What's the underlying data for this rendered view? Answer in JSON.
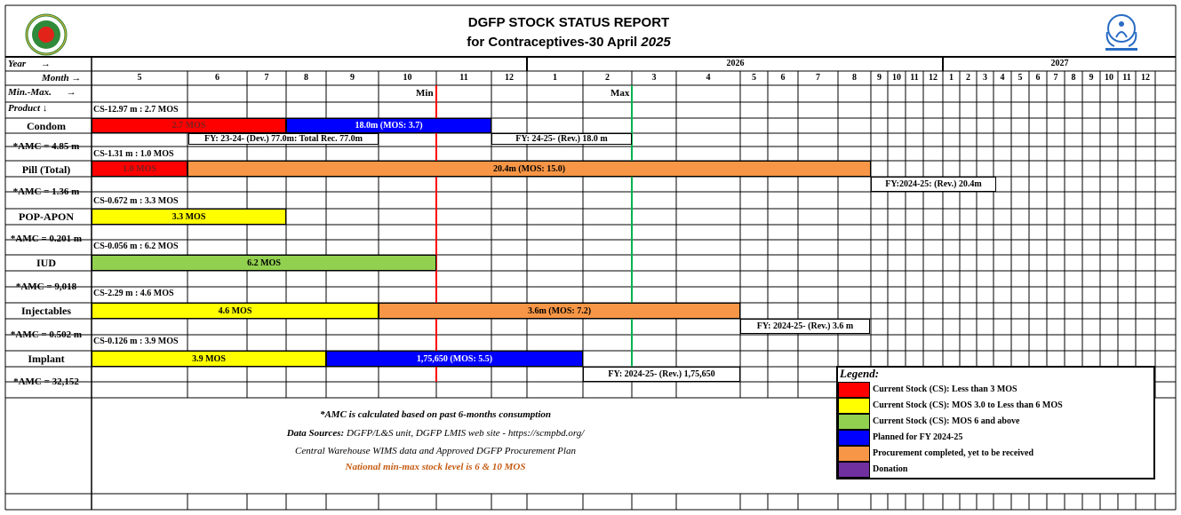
{
  "header": {
    "title_line1": "DGFP STOCK STATUS REPORT",
    "title_line2_prefix": "for Contraceptives-30 April ",
    "title_line2_year": "2025",
    "left_logo_icon": "bangladesh-govt-seal-icon",
    "right_logo_icon": "dgfp-family-planning-logo-icon"
  },
  "grid": {
    "row_labels": {
      "year": "Year",
      "year_arrow": "→",
      "month": "Month",
      "month_arrow": "→",
      "minmax": "Min.-Max.",
      "minmax_arrow": "→",
      "product": "Product",
      "product_arrow": "↓"
    },
    "years": [
      "2026",
      "2027"
    ],
    "months": [
      "5",
      "6",
      "7",
      "8",
      "9",
      "10",
      "11",
      "12",
      "1",
      "2",
      "3",
      "4",
      "5",
      "6",
      "7",
      "8",
      "9",
      "10",
      "11",
      "12",
      "1",
      "2",
      "3",
      "4",
      "5",
      "6",
      "7",
      "8",
      "9",
      "10",
      "11",
      "12"
    ],
    "min_label": "Min",
    "max_label": "Max"
  },
  "colors": {
    "red": "#ff0000",
    "yellow": "#ffff00",
    "green": "#92d050",
    "blue": "#0000ff",
    "orange": "#f79646",
    "purple": "#7030a0",
    "min_line": "#ff0000",
    "max_line": "#00b050",
    "note_orange": "#c55a11"
  },
  "products": [
    {
      "name": "Condom",
      "cs": "CS-12.97 m : 2.7 MOS",
      "amc": "*AMC = 4.85 m",
      "bars": [
        "2.7 MOS",
        "18.0m (MOS: 3.7)"
      ],
      "notes": [
        "FY: 23-24- (Dev.) 77.0m: Total Rec. 77.0m",
        "FY: 24-25- (Rev.) 18.0 m"
      ]
    },
    {
      "name": "Pill (Total)",
      "cs": "CS-1.31 m : 1.0 MOS",
      "amc": "*AMC = 1.36 m",
      "bars": [
        "1.0 MOS",
        "20.4m (MOS: 15.0)"
      ],
      "notes": [
        "FY:2024-25: (Rev.) 20.4m"
      ]
    },
    {
      "name": "POP-APON",
      "cs": "CS-0.672 m : 3.3 MOS",
      "amc": "*AMC = 0.201 m",
      "bars": [
        "3.3 MOS"
      ],
      "notes": []
    },
    {
      "name": "IUD",
      "cs": "CS-0.056 m : 6.2 MOS",
      "amc": "*AMC = 9,018",
      "bars": [
        "6.2 MOS"
      ],
      "notes": []
    },
    {
      "name": "Injectables",
      "cs": "CS-2.29 m : 4.6 MOS",
      "amc": "*AMC = 0.502 m",
      "bars": [
        "4.6 MOS",
        "3.6m (MOS: 7.2)"
      ],
      "notes": [
        "FY: 2024-25- (Rev.) 3.6 m"
      ]
    },
    {
      "name": "Implant",
      "cs": "CS-0.126 m : 3.9 MOS",
      "amc": "*AMC = 32,152",
      "bars": [
        "3.9 MOS",
        "1,75,650  (MOS: 5.5)"
      ],
      "notes": [
        "FY: 2024-25- (Rev.) 1,75,650"
      ]
    }
  ],
  "footnotes": {
    "amc_note": "*AMC is calculated based on past 6-months consumption",
    "sources_label": "Data Sources: ",
    "sources_text": "DGFP/L&S unit, DGFP LMIS web site -  https://scmpbd.org/",
    "sources_line2": "Central Warehouse WIMS data and Approved DGFP Procurement Plan",
    "minmax_note": "National min-max stock level is 6 & 10 MOS"
  },
  "legend": {
    "title": "Legend:",
    "items": [
      {
        "color": "#ff0000",
        "label": "Current Stock (CS): Less than 3 MOS"
      },
      {
        "color": "#ffff00",
        "label": "Current Stock (CS): MOS 3.0 to Less than 6 MOS"
      },
      {
        "color": "#92d050",
        "label": "Current Stock (CS): MOS 6 and above"
      },
      {
        "color": "#0000ff",
        "label": "Planned for FY 2024-25"
      },
      {
        "color": "#f79646",
        "label": "Procurement completed, yet to be received"
      },
      {
        "color": "#7030a0",
        "label": "Donation"
      }
    ]
  }
}
